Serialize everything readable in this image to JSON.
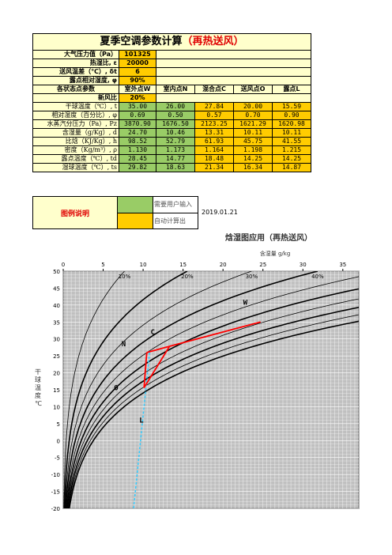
{
  "title_main": "夏季空调参数计算",
  "title_sub": "（再热送风）",
  "inputs": [
    {
      "label": "大气压力值（Pa）",
      "value": "101325"
    },
    {
      "label": "热湿比, ε",
      "value": "20000"
    },
    {
      "label": "送风温差（℃）, δt",
      "value": "6"
    },
    {
      "label": "露点相对湿度, φ",
      "value": "90%"
    }
  ],
  "headers": [
    "各状态点参数",
    "室外点W",
    "室内点N",
    "混合点C",
    "送风点O",
    "露点L"
  ],
  "fresh_air": {
    "label": "新风比",
    "value": "20%"
  },
  "rows": [
    {
      "label": "干球温度（℃）, t",
      "values": [
        "35.00",
        "26.00",
        "27.84",
        "20.00",
        "15.59"
      ]
    },
    {
      "label": "相对湿度（百分比）, φ",
      "values": [
        "0.69",
        "0.50",
        "0.57",
        "0.70",
        "0.90"
      ]
    },
    {
      "label": "水蒸汽分压力（Pa）, Pz",
      "values": [
        "3870.90",
        "1676.50",
        "2123.25",
        "1621.29",
        "1620.98"
      ]
    },
    {
      "label": "含湿量（g/Kg）, d",
      "values": [
        "24.70",
        "10.46",
        "13.31",
        "10.11",
        "10.11"
      ]
    },
    {
      "label": "比焓（KJ/Kg）, h",
      "values": [
        "98.52",
        "52.79",
        "61.93",
        "45.75",
        "41.55"
      ]
    },
    {
      "label": "密度（Kg/m³）, ρ",
      "values": [
        "1.130",
        "1.173",
        "1.164",
        "1.198",
        "1.215"
      ]
    },
    {
      "label": "露点温度（℃）, td",
      "values": [
        "28.45",
        "14.77",
        "18.48",
        "14.25",
        "14.25"
      ]
    },
    {
      "label": "湿球温度（℃）, ts",
      "values": [
        "29.82",
        "18.63",
        "21.34",
        "16.34",
        "14.87"
      ]
    }
  ],
  "legend": {
    "title": "图例说明",
    "green_text": "需要用户输入",
    "orange_text": "自动计算出",
    "date": "2019.01.21"
  },
  "chart_data": {
    "type": "line",
    "title": "焓湿图应用（再热送风）",
    "xlabel": "含湿量 g/kg",
    "ylabel": "干球温度℃",
    "xlim": [
      0,
      37
    ],
    "ylim": [
      -20,
      50
    ],
    "x_ticks": [
      0,
      5,
      10,
      15,
      20,
      25,
      30,
      35
    ],
    "y_ticks": [
      50,
      45,
      40,
      35,
      30,
      25,
      20,
      15,
      10,
      5,
      0,
      -5,
      -10,
      -15,
      -20
    ],
    "rh_labels": [
      "10%",
      "20%",
      "30%",
      "40%"
    ],
    "rh_curves": [
      10,
      20,
      30,
      40,
      50,
      60,
      70,
      80,
      90,
      100
    ],
    "points": [
      {
        "name": "W",
        "d": 24.7,
        "t": 35.0
      },
      {
        "name": "N",
        "d": 10.46,
        "t": 26.0
      },
      {
        "name": "C",
        "d": 13.31,
        "t": 27.84
      },
      {
        "name": "O",
        "d": 10.11,
        "t": 20.0
      },
      {
        "name": "L",
        "d": 10.11,
        "t": 15.59
      }
    ],
    "process_color": "#FF0000",
    "dewline_color": "#33CCFF",
    "background_color": "#C0C0C0"
  }
}
